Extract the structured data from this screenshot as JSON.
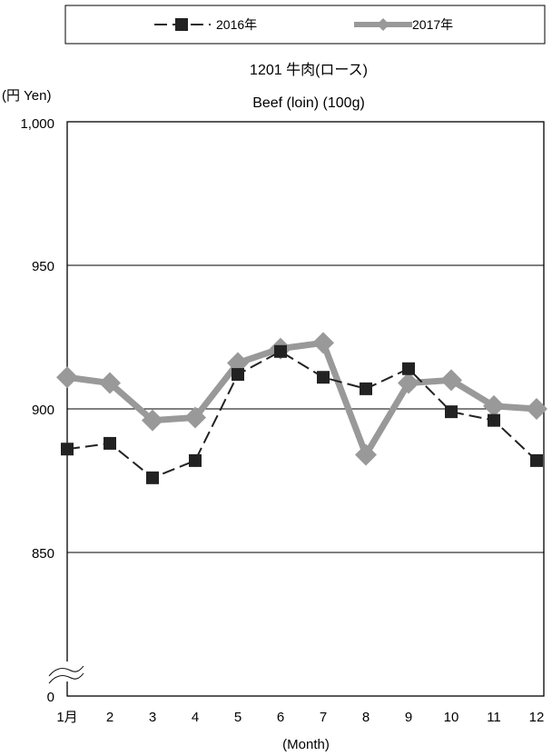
{
  "chart_data": {
    "type": "line",
    "title": "1201 牛肉(ロース)",
    "subtitle": "Beef (loin) (100g)",
    "ylabel": "(円 Yen)",
    "xlabel": "(Month)",
    "categories": [
      "1月",
      "2",
      "3",
      "4",
      "5",
      "6",
      "7",
      "8",
      "9",
      "10",
      "11",
      "12"
    ],
    "y_ticks": [
      "1,000",
      "950",
      "900",
      "850",
      "0"
    ],
    "ylim": [
      800,
      1000
    ],
    "axis_break": true,
    "grid": "horizontal",
    "legend_position": "top",
    "series": [
      {
        "name": "2016年",
        "style": "dashed",
        "marker": "square",
        "color": "#222222",
        "values": [
          886,
          888,
          876,
          882,
          912,
          920,
          911,
          907,
          914,
          899,
          896,
          882
        ]
      },
      {
        "name": "2017年",
        "style": "solid-thick",
        "marker": "diamond",
        "color": "#999999",
        "values": [
          911,
          909,
          896,
          897,
          916,
          921,
          923,
          884,
          909,
          910,
          901,
          900
        ]
      }
    ]
  }
}
